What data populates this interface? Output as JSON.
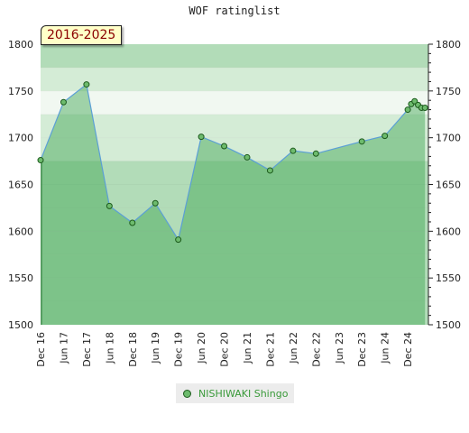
{
  "chart_data": {
    "type": "area",
    "title": "WOF ratinglist",
    "period_label": "2016-2025",
    "ylim": [
      1500,
      1800
    ],
    "y_ticks": [
      "1500",
      "1550",
      "1600",
      "1650",
      "1700",
      "1750",
      "1800"
    ],
    "x_tick_labels": [
      "Dec 16",
      "Jun 17",
      "Dec 17",
      "Jun 18",
      "Dec 18",
      "Jun 19",
      "Dec 19",
      "Jun 20",
      "Dec 20",
      "Jun 21",
      "Dec 21",
      "Jun 22",
      "Dec 22",
      "Jun 23",
      "Dec 23",
      "Jun 24",
      "Dec 24"
    ],
    "x_range": [
      0,
      16.9
    ],
    "series": [
      {
        "name": "NISHIWAKI Shingo",
        "points": [
          {
            "x": 0.0,
            "y": 1676
          },
          {
            "x": 1.0,
            "y": 1738
          },
          {
            "x": 2.0,
            "y": 1757
          },
          {
            "x": 3.0,
            "y": 1627
          },
          {
            "x": 4.0,
            "y": 1609
          },
          {
            "x": 5.0,
            "y": 1630
          },
          {
            "x": 6.0,
            "y": 1591
          },
          {
            "x": 7.0,
            "y": 1701
          },
          {
            "x": 8.0,
            "y": 1691
          },
          {
            "x": 9.0,
            "y": 1679
          },
          {
            "x": 10.0,
            "y": 1665
          },
          {
            "x": 11.0,
            "y": 1686
          },
          {
            "x": 12.0,
            "y": 1683
          },
          {
            "x": 14.0,
            "y": 1696
          },
          {
            "x": 15.0,
            "y": 1702
          },
          {
            "x": 16.0,
            "y": 1730
          },
          {
            "x": 16.15,
            "y": 1736
          },
          {
            "x": 16.3,
            "y": 1739
          },
          {
            "x": 16.45,
            "y": 1735
          },
          {
            "x": 16.6,
            "y": 1732
          },
          {
            "x": 16.75,
            "y": 1732
          }
        ]
      }
    ],
    "grid": true,
    "legend": "bottom-center",
    "colors": {
      "band_a": "#b2dcb8",
      "band_b": "#d4ecd6",
      "band_c": "#f1f8f1",
      "area_fill": "rgba(60,165,80,0.45)",
      "line": "#5b9fd6",
      "marker_fill": "#6dbb6d",
      "marker_stroke": "#1c5a1c"
    }
  }
}
